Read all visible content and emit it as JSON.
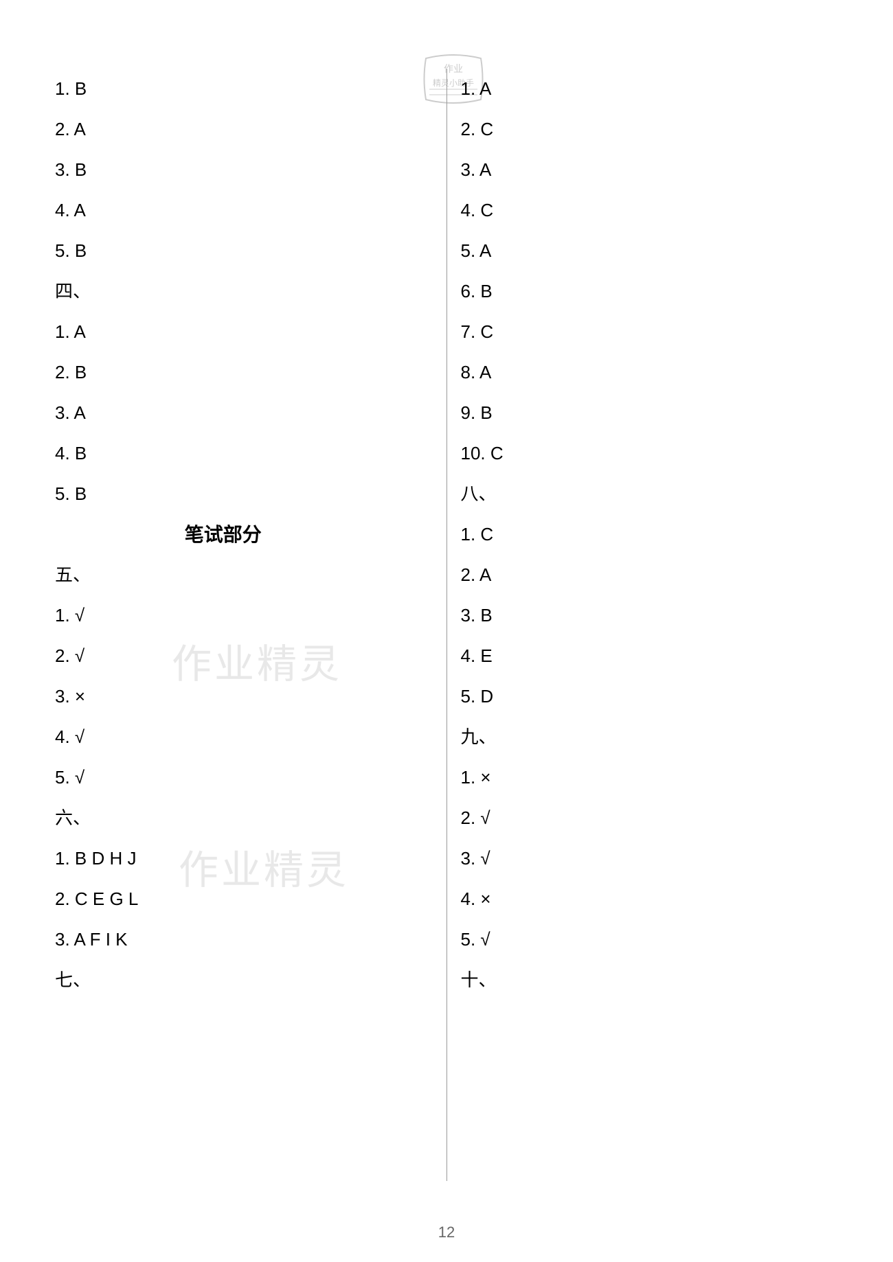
{
  "leftColumn": {
    "items": [
      {
        "text": "1. B",
        "type": "answer"
      },
      {
        "text": "2. A",
        "type": "answer"
      },
      {
        "text": "3. B",
        "type": "answer"
      },
      {
        "text": "4. A",
        "type": "answer"
      },
      {
        "text": "5. B",
        "type": "answer"
      },
      {
        "text": "四、",
        "type": "section"
      },
      {
        "text": "1. A",
        "type": "answer"
      },
      {
        "text": "2. B",
        "type": "answer"
      },
      {
        "text": "3. A",
        "type": "answer"
      },
      {
        "text": "4. B",
        "type": "answer"
      },
      {
        "text": "5. B",
        "type": "answer"
      },
      {
        "text": "笔试部分",
        "type": "written"
      },
      {
        "text": "五、",
        "type": "section"
      },
      {
        "text": "1. √",
        "type": "answer"
      },
      {
        "text": "2. √",
        "type": "answer"
      },
      {
        "text": "3. ×",
        "type": "answer"
      },
      {
        "text": "4. √",
        "type": "answer"
      },
      {
        "text": "5. √",
        "type": "answer"
      },
      {
        "text": "六、",
        "type": "section"
      },
      {
        "text": "1. B D H J",
        "type": "answer"
      },
      {
        "text": "2. C E G L",
        "type": "answer"
      },
      {
        "text": "3. A F I K",
        "type": "answer"
      },
      {
        "text": "七、",
        "type": "section"
      }
    ]
  },
  "rightColumn": {
    "items": [
      {
        "text": "1. A",
        "type": "answer"
      },
      {
        "text": "2. C",
        "type": "answer"
      },
      {
        "text": "3. A",
        "type": "answer"
      },
      {
        "text": "4. C",
        "type": "answer"
      },
      {
        "text": "5. A",
        "type": "answer"
      },
      {
        "text": "6. B",
        "type": "answer"
      },
      {
        "text": "7. C",
        "type": "answer"
      },
      {
        "text": "8. A",
        "type": "answer"
      },
      {
        "text": "9. B",
        "type": "answer"
      },
      {
        "text": "10. C",
        "type": "answer"
      },
      {
        "text": "八、",
        "type": "section"
      },
      {
        "text": "1. C",
        "type": "answer"
      },
      {
        "text": "2. A",
        "type": "answer"
      },
      {
        "text": "3. B",
        "type": "answer"
      },
      {
        "text": "4. E",
        "type": "answer"
      },
      {
        "text": "5. D",
        "type": "answer"
      },
      {
        "text": "九、",
        "type": "section"
      },
      {
        "text": "1. ×",
        "type": "answer"
      },
      {
        "text": "2. √",
        "type": "answer"
      },
      {
        "text": "3. √",
        "type": "answer"
      },
      {
        "text": "4. ×",
        "type": "answer"
      },
      {
        "text": "5. √",
        "type": "answer"
      },
      {
        "text": "十、",
        "type": "section"
      }
    ]
  },
  "pageNumber": "12",
  "watermarkText": "作业精灵",
  "colors": {
    "background": "#ffffff",
    "text": "#000000",
    "divider": "#999999",
    "watermark": "#e8e8e8",
    "pageNum": "#666666",
    "stamp": "#cccccc"
  },
  "typography": {
    "answerFontSize": 26,
    "sectionFontSize": 26,
    "writtenFontSize": 28,
    "pageNumFontSize": 22,
    "watermarkFontSize": 58,
    "lineHeight": 59
  }
}
